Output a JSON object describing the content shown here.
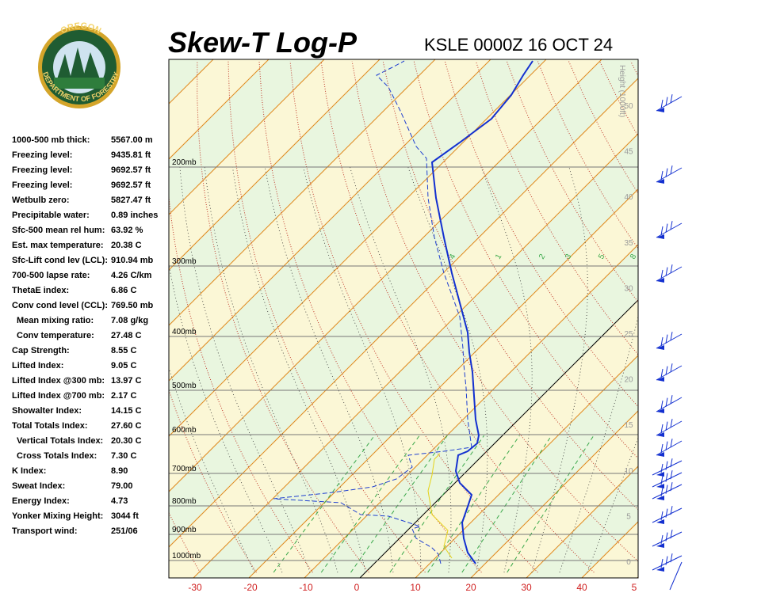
{
  "logo": {
    "top": "OREGON",
    "bottom": "DEPARTMENT OF FORESTRY"
  },
  "header": {
    "title": "Skew-T Log-P",
    "station": "KSLE 0000Z 16 OCT 24"
  },
  "stats": [
    [
      "1000-500 mb thick:",
      "5567.00 m"
    ],
    [
      "Freezing level:",
      "9435.81 ft"
    ],
    [
      "Freezing level:",
      "9692.57 ft"
    ],
    [
      "Freezing level:",
      "9692.57 ft"
    ],
    [
      "Wetbulb zero:",
      "5827.47 ft"
    ],
    [
      "Precipitable water:",
      "0.89 inches"
    ],
    [
      "Sfc-500 mean rel hum:",
      "63.92 %"
    ],
    [
      "Est. max temperature:",
      "20.38 C"
    ],
    [
      "Sfc-Lift cond lev (LCL):",
      "910.94 mb"
    ],
    [
      "700-500 lapse rate:",
      "4.26 C/km"
    ],
    [
      "ThetaE index:",
      "6.86 C"
    ],
    [
      "Conv cond level (CCL):",
      "769.50 mb"
    ],
    [
      "Mean mixing ratio:",
      "7.08 g/kg"
    ],
    [
      "Conv temperature:",
      "27.48 C"
    ],
    [
      "Cap Strength:",
      "8.55 C"
    ],
    [
      "Lifted Index:",
      "9.05 C"
    ],
    [
      "Lifted Index @300 mb:",
      "13.97 C"
    ],
    [
      "Lifted Index @700 mb:",
      "2.17 C"
    ],
    [
      "Showalter Index:",
      "14.15 C"
    ],
    [
      "Total Totals Index:",
      "27.60 C"
    ],
    [
      "Vertical Totals Index:",
      "20.30 C"
    ],
    [
      "Cross Totals Index:",
      "7.30 C"
    ],
    [
      "K Index:",
      "8.90"
    ],
    [
      "Sweat Index:",
      "79.00"
    ],
    [
      "Energy Index:",
      "4.73"
    ],
    [
      "Yonker Mixing Height:",
      "3044 ft"
    ],
    [
      "Transport wind:",
      "251/06"
    ]
  ],
  "pressure_labels": [
    "200mb",
    "300mb",
    "400mb",
    "500mb",
    "600mb",
    "700mb",
    "800mb",
    "900mb",
    "1000mb"
  ],
  "temp_labels": [
    "-30",
    "-20",
    "-10",
    "0",
    "10",
    "20",
    "30",
    "40",
    "5"
  ],
  "height_axis": {
    "title": "Height (1000ft)",
    "labels": [
      "50",
      "45",
      "40",
      "35",
      "30",
      "25",
      "20",
      "15",
      "10",
      "5",
      "0"
    ]
  },
  "mixing_labels": [
    "4",
    "1",
    "2",
    "3",
    "5",
    "8"
  ]
}
